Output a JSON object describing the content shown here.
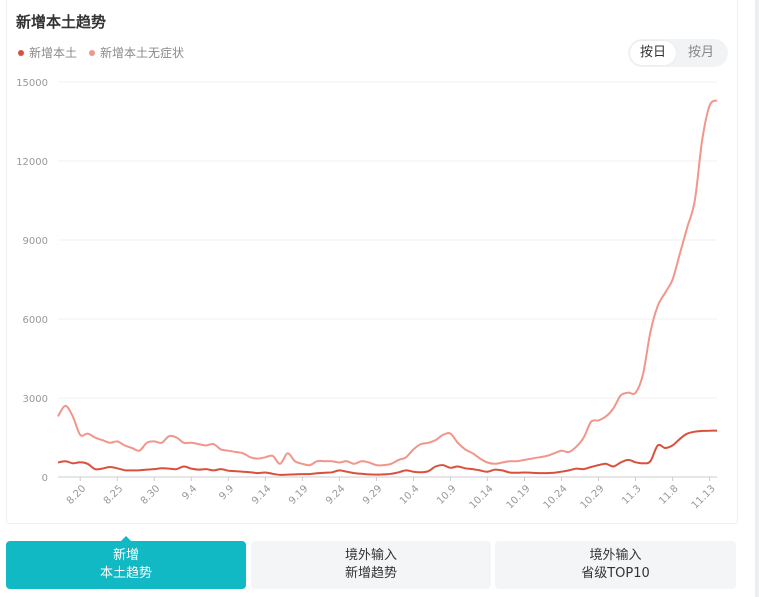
{
  "header": {
    "title": "新增本土趋势"
  },
  "toggle": {
    "day_label": "按日",
    "month_label": "按月",
    "selected": "day"
  },
  "tabs": [
    {
      "line1": "新增",
      "line2": "本土趋势",
      "active": true
    },
    {
      "line1": "境外输入",
      "line2": "新增趋势",
      "active": false
    },
    {
      "line1": "境外输入",
      "line2": "省级TOP10",
      "active": false
    }
  ],
  "colors": {
    "local": "#d9503d",
    "asymptomatic": "#f2958a",
    "accent": "#11b9c4"
  },
  "chart_data": {
    "type": "line",
    "legend_position": "top-left",
    "grid": true,
    "ylim": [
      0,
      15000
    ],
    "yticks": [
      "0",
      "3000",
      "6000",
      "9000",
      "12000",
      "15000"
    ],
    "x_tick_labels": [
      "8.20",
      "8.25",
      "8.30",
      "9.4",
      "9.9",
      "9.14",
      "9.19",
      "9.24",
      "9.29",
      "10.4",
      "10.9",
      "10.14",
      "10.19",
      "10.24",
      "10.29",
      "11.3",
      "11.8",
      "11.13"
    ],
    "x": [
      "8.17",
      "8.18",
      "8.19",
      "8.20",
      "8.21",
      "8.22",
      "8.23",
      "8.24",
      "8.25",
      "8.26",
      "8.27",
      "8.28",
      "8.29",
      "8.30",
      "8.31",
      "9.1",
      "9.2",
      "9.3",
      "9.4",
      "9.5",
      "9.6",
      "9.7",
      "9.8",
      "9.9",
      "9.10",
      "9.11",
      "9.12",
      "9.13",
      "9.14",
      "9.15",
      "9.16",
      "9.17",
      "9.18",
      "9.19",
      "9.20",
      "9.21",
      "9.22",
      "9.23",
      "9.24",
      "9.25",
      "9.26",
      "9.27",
      "9.28",
      "9.29",
      "9.30",
      "10.1",
      "10.2",
      "10.3",
      "10.4",
      "10.5",
      "10.6",
      "10.7",
      "10.8",
      "10.9",
      "10.10",
      "10.11",
      "10.12",
      "10.13",
      "10.14",
      "10.15",
      "10.16",
      "10.17",
      "10.18",
      "10.19",
      "10.20",
      "10.21",
      "10.22",
      "10.23",
      "10.24",
      "10.25",
      "10.26",
      "10.27",
      "10.28",
      "10.29",
      "10.30",
      "10.31",
      "11.1",
      "11.2",
      "11.3",
      "11.4",
      "11.5",
      "11.6",
      "11.7",
      "11.8",
      "11.9",
      "11.10",
      "11.11",
      "11.12",
      "11.13",
      "11.14"
    ],
    "series": [
      {
        "name": "新增本土",
        "values": [
          550,
          600,
          520,
          560,
          500,
          300,
          320,
          380,
          330,
          260,
          250,
          260,
          280,
          300,
          330,
          320,
          300,
          400,
          320,
          280,
          300,
          250,
          300,
          240,
          220,
          200,
          180,
          150,
          170,
          120,
          80,
          90,
          100,
          110,
          110,
          140,
          160,
          180,
          250,
          200,
          150,
          120,
          100,
          90,
          100,
          120,
          180,
          250,
          200,
          180,
          220,
          400,
          450,
          350,
          400,
          330,
          300,
          250,
          200,
          280,
          250,
          170,
          160,
          170,
          160,
          150,
          150,
          160,
          200,
          250,
          320,
          300,
          380,
          450,
          500,
          400,
          550,
          650,
          560,
          520,
          600,
          1200,
          1100,
          1200,
          1450,
          1650,
          1720,
          1750,
          1760,
          1760
        ]
      },
      {
        "name": "新增本土无症状",
        "values": [
          2300,
          2700,
          2300,
          1600,
          1650,
          1500,
          1400,
          1300,
          1350,
          1200,
          1100,
          1000,
          1300,
          1350,
          1300,
          1550,
          1500,
          1300,
          1300,
          1250,
          1200,
          1250,
          1050,
          1000,
          950,
          900,
          750,
          700,
          750,
          800,
          500,
          900,
          600,
          500,
          450,
          600,
          600,
          600,
          550,
          600,
          500,
          600,
          550,
          450,
          450,
          500,
          650,
          750,
          1050,
          1250,
          1300,
          1400,
          1600,
          1650,
          1300,
          1050,
          900,
          700,
          550,
          500,
          550,
          600,
          600,
          650,
          700,
          750,
          800,
          900,
          1000,
          950,
          1150,
          1500,
          2100,
          2150,
          2300,
          2600,
          3100,
          3200,
          3200,
          3900,
          5500,
          6500,
          7000,
          7500,
          8500,
          9500,
          10500,
          12800,
          14100,
          14300
        ]
      }
    ]
  }
}
